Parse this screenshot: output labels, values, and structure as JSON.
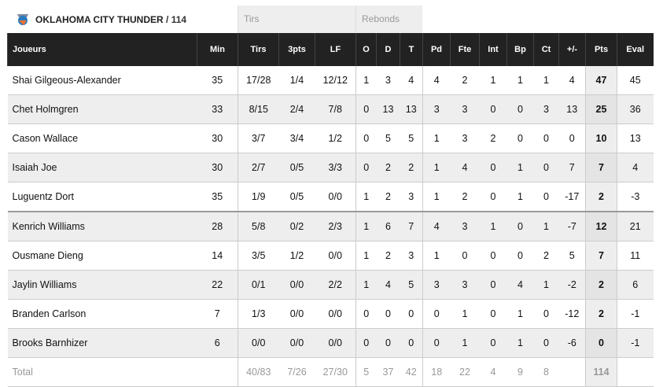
{
  "team": {
    "name": "OKLAHOMA CITY THUNDER",
    "separator": "/",
    "score": "114"
  },
  "groups": {
    "shots": "Tirs",
    "rebounds": "Rebonds"
  },
  "columns": [
    "Joueurs",
    "Min",
    "Tirs",
    "3pts",
    "LF",
    "O",
    "D",
    "T",
    "Pd",
    "Fte",
    "Int",
    "Bp",
    "Ct",
    "+/-",
    "Pts",
    "Eval"
  ],
  "rows": [
    [
      "Shai Gilgeous-Alexander",
      "35",
      "17/28",
      "1/4",
      "12/12",
      "1",
      "3",
      "4",
      "4",
      "2",
      "1",
      "1",
      "1",
      "4",
      "47",
      "45"
    ],
    [
      "Chet Holmgren",
      "33",
      "8/15",
      "2/4",
      "7/8",
      "0",
      "13",
      "13",
      "3",
      "3",
      "0",
      "0",
      "3",
      "13",
      "25",
      "36"
    ],
    [
      "Cason Wallace",
      "30",
      "3/7",
      "3/4",
      "1/2",
      "0",
      "5",
      "5",
      "1",
      "3",
      "2",
      "0",
      "0",
      "0",
      "10",
      "13"
    ],
    [
      "Isaiah Joe",
      "30",
      "2/7",
      "0/5",
      "3/3",
      "0",
      "2",
      "2",
      "1",
      "4",
      "0",
      "1",
      "0",
      "7",
      "7",
      "4"
    ],
    [
      "Luguentz Dort",
      "35",
      "1/9",
      "0/5",
      "0/0",
      "1",
      "2",
      "3",
      "1",
      "2",
      "0",
      "1",
      "0",
      "-17",
      "2",
      "-3"
    ],
    [
      "Kenrich Williams",
      "28",
      "5/8",
      "0/2",
      "2/3",
      "1",
      "6",
      "7",
      "4",
      "3",
      "1",
      "0",
      "1",
      "-7",
      "12",
      "21"
    ],
    [
      "Ousmane Dieng",
      "14",
      "3/5",
      "1/2",
      "0/0",
      "1",
      "2",
      "3",
      "1",
      "0",
      "0",
      "0",
      "2",
      "5",
      "7",
      "11"
    ],
    [
      "Jaylin Williams",
      "22",
      "0/1",
      "0/0",
      "2/2",
      "1",
      "4",
      "5",
      "3",
      "3",
      "0",
      "4",
      "1",
      "-2",
      "2",
      "6"
    ],
    [
      "Branden Carlson",
      "7",
      "1/3",
      "0/0",
      "0/0",
      "0",
      "0",
      "0",
      "0",
      "1",
      "0",
      "1",
      "0",
      "-12",
      "2",
      "-1"
    ],
    [
      "Brooks Barnhizer",
      "6",
      "0/0",
      "0/0",
      "0/0",
      "0",
      "0",
      "0",
      "0",
      "1",
      "0",
      "1",
      "0",
      "-6",
      "0",
      "-1"
    ]
  ],
  "total": [
    "Total",
    "",
    "40/83",
    "7/26",
    "27/30",
    "5",
    "37",
    "42",
    "18",
    "22",
    "4",
    "9",
    "8",
    "",
    "114",
    ""
  ]
}
